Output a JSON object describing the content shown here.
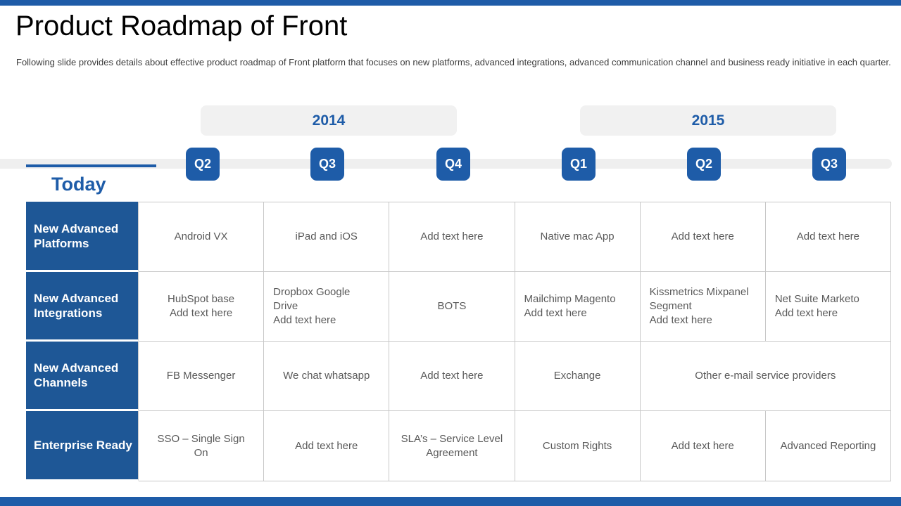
{
  "slide": {
    "title": "Product Roadmap of Front",
    "subtitle": "Following slide provides details about effective product roadmap of Front platform that focuses on new platforms, advanced integrations, advanced communication channel and business ready initiative in each quarter."
  },
  "timeline": {
    "today_label": "Today",
    "years": [
      {
        "label": "2014"
      },
      {
        "label": "2015"
      }
    ],
    "quarters": [
      {
        "label": "Q2",
        "year": "2014"
      },
      {
        "label": "Q3",
        "year": "2014"
      },
      {
        "label": "Q4",
        "year": "2014"
      },
      {
        "label": "Q1",
        "year": "2015"
      },
      {
        "label": "Q2",
        "year": "2015"
      },
      {
        "label": "Q3",
        "year": "2015"
      }
    ]
  },
  "colors": {
    "accent_blue": "#1E5CA8",
    "table_header_blue": "#1E5796",
    "year_pill_gray": "#F1F1F1",
    "track_gray": "#EFEFEF",
    "cell_text_gray": "#595959",
    "border_gray": "#C8C8C8"
  },
  "table": {
    "rows": [
      {
        "header": "New Advanced Platforms",
        "cells": [
          {
            "text": "Android VX"
          },
          {
            "text": "iPad and iOS"
          },
          {
            "text": "Add text here"
          },
          {
            "text": "Native mac App"
          },
          {
            "text": "Add text here"
          },
          {
            "text": "Add text here"
          }
        ]
      },
      {
        "header": "New Advanced Integrations",
        "cells": [
          {
            "text": "HubSpot base\nAdd text here"
          },
          {
            "text": "Dropbox Google\nDrive\nAdd text here"
          },
          {
            "text": "BOTS"
          },
          {
            "text": "Mailchimp Magento\nAdd text here"
          },
          {
            "text": "Kissmetrics Mixpanel\nSegment\nAdd text here"
          },
          {
            "text": "Net Suite Marketo\nAdd text here"
          }
        ]
      },
      {
        "header": "New Advanced Channels",
        "cells": [
          {
            "text": "FB Messenger"
          },
          {
            "text": "We chat whatsapp"
          },
          {
            "text": "Add text here"
          },
          {
            "text": "Exchange"
          },
          {
            "text": "Other e-mail service providers",
            "span": 2
          }
        ]
      },
      {
        "header": "Enterprise Ready",
        "cells": [
          {
            "text": "SSO – Single Sign\nOn"
          },
          {
            "text": "Add text here"
          },
          {
            "text": "SLA’s – Service Level\nAgreement"
          },
          {
            "text": "Custom Rights"
          },
          {
            "text": "Add text here"
          },
          {
            "text": "Advanced Reporting"
          }
        ]
      }
    ]
  }
}
